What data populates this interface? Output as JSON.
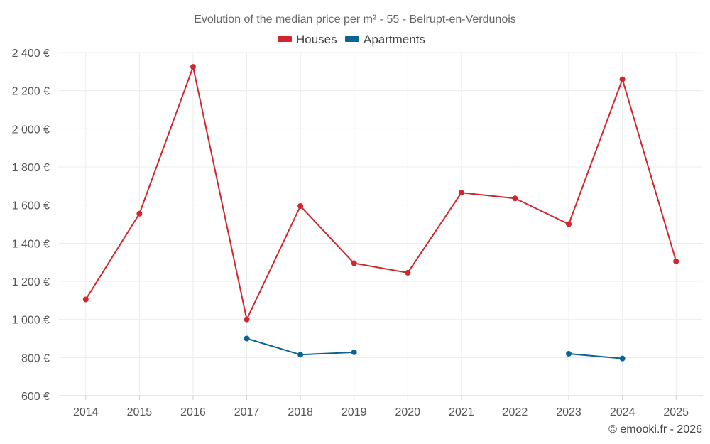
{
  "chart_data": {
    "type": "line",
    "title": "Evolution of the median price per m² - 55 - Belrupt-en-Verdunois",
    "xlabel": "",
    "ylabel": "",
    "categories": [
      "2014",
      "2015",
      "2016",
      "2017",
      "2018",
      "2019",
      "2020",
      "2021",
      "2022",
      "2023",
      "2024",
      "2025"
    ],
    "y_ticks": [
      600,
      800,
      1000,
      1200,
      1400,
      1600,
      1800,
      2000,
      2200,
      2400
    ],
    "y_tick_labels": [
      "600 €",
      "800 €",
      "1 000 €",
      "1 200 €",
      "1 400 €",
      "1 600 €",
      "1 800 €",
      "2 000 €",
      "2 200 €",
      "2 400 €"
    ],
    "ylim": [
      600,
      2400
    ],
    "grid": true,
    "legend_position": "top-center",
    "series": [
      {
        "name": "Houses",
        "color": "#d1262b",
        "values": [
          1105,
          1555,
          2325,
          1000,
          1595,
          1295,
          1245,
          1665,
          1635,
          1500,
          2260,
          1305
        ]
      },
      {
        "name": "Apartments",
        "color": "#0a6496",
        "values": [
          null,
          null,
          null,
          900,
          815,
          828,
          null,
          null,
          null,
          820,
          795,
          null
        ]
      }
    ],
    "credit": "© emooki.fr - 2026"
  }
}
